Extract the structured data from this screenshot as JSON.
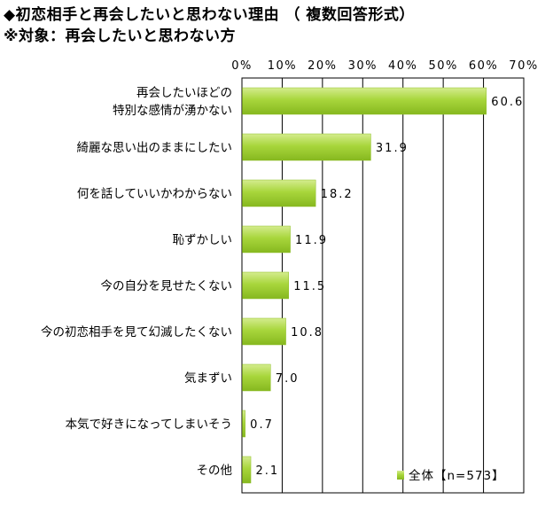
{
  "title": "◆初恋相手と再会したいと思わない理由 （ 複数回答形式）",
  "subtitle": "※対象：再会したいと思わない方",
  "chart_data": {
    "type": "bar",
    "orientation": "horizontal",
    "categories": [
      [
        "再会したいほどの",
        "特別な感情が湧かない"
      ],
      [
        "綺麗な思い出のままにしたい"
      ],
      [
        "何を話していいかわからない"
      ],
      [
        "恥ずかしい"
      ],
      [
        "今の自分を見せたくない"
      ],
      [
        "今の初恋相手を見て幻滅したくない"
      ],
      [
        "気まずい"
      ],
      [
        "本気で好きになってしまいそう"
      ],
      [
        "その他"
      ]
    ],
    "series": [
      {
        "name": "全体【n=573】",
        "values": [
          60.6,
          31.9,
          18.2,
          11.9,
          11.5,
          10.8,
          7.0,
          0.7,
          2.1
        ]
      }
    ],
    "value_labels": [
      "60.6",
      "31.9",
      "18.2",
      "11.9",
      "11.5",
      "10.8",
      "7.0",
      "0.7",
      "2.1"
    ],
    "xlim": [
      0,
      70
    ],
    "ticks": [
      "0%",
      "10%",
      "20%",
      "30%",
      "40%",
      "50%",
      "60%",
      "70%"
    ],
    "grid": true,
    "legend_position": "bottom-right",
    "bar_color": "#9acd32"
  }
}
